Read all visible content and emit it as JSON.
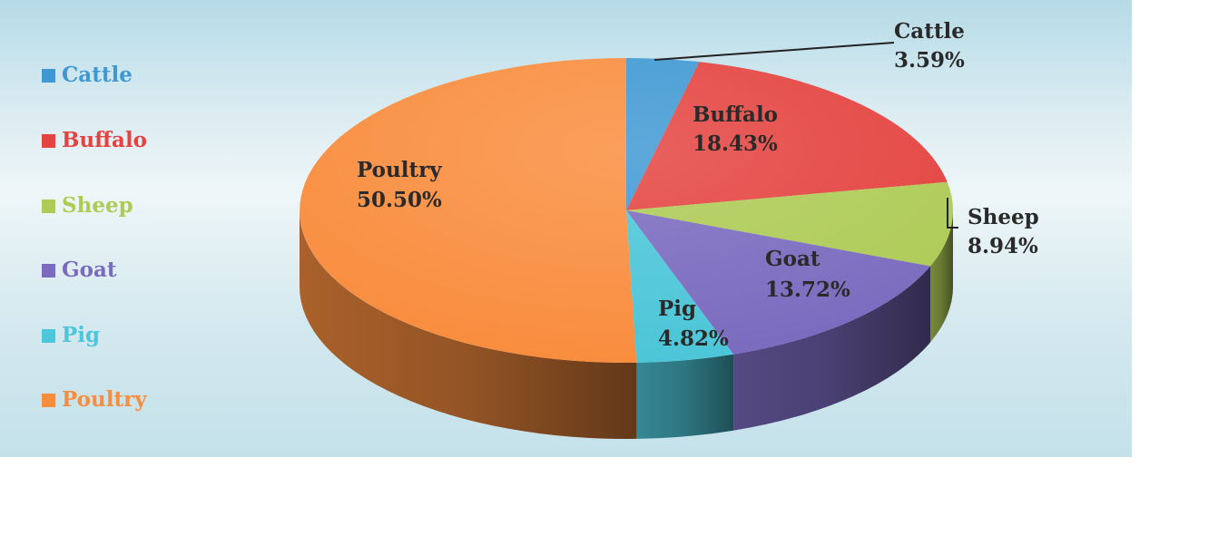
{
  "chart_data": {
    "type": "pie",
    "title": "",
    "legend_position": "left",
    "style": "3d",
    "slices": [
      {
        "label": "Cattle",
        "value": 3.59,
        "display": "3.59%",
        "color": "#3f98d3"
      },
      {
        "label": "Buffalo",
        "value": 18.43,
        "display": "18.43%",
        "color": "#e4433f"
      },
      {
        "label": "Sheep",
        "value": 8.94,
        "display": "8.94%",
        "color": "#aecb56"
      },
      {
        "label": "Goat",
        "value": 13.72,
        "display": "13.72%",
        "color": "#7b6bbf"
      },
      {
        "label": "Pig",
        "value": 4.82,
        "display": "4.82%",
        "color": "#4cc6d8"
      },
      {
        "label": "Poultry",
        "value": 50.5,
        "display": "50.50%",
        "color": "#f98d3e"
      }
    ]
  }
}
